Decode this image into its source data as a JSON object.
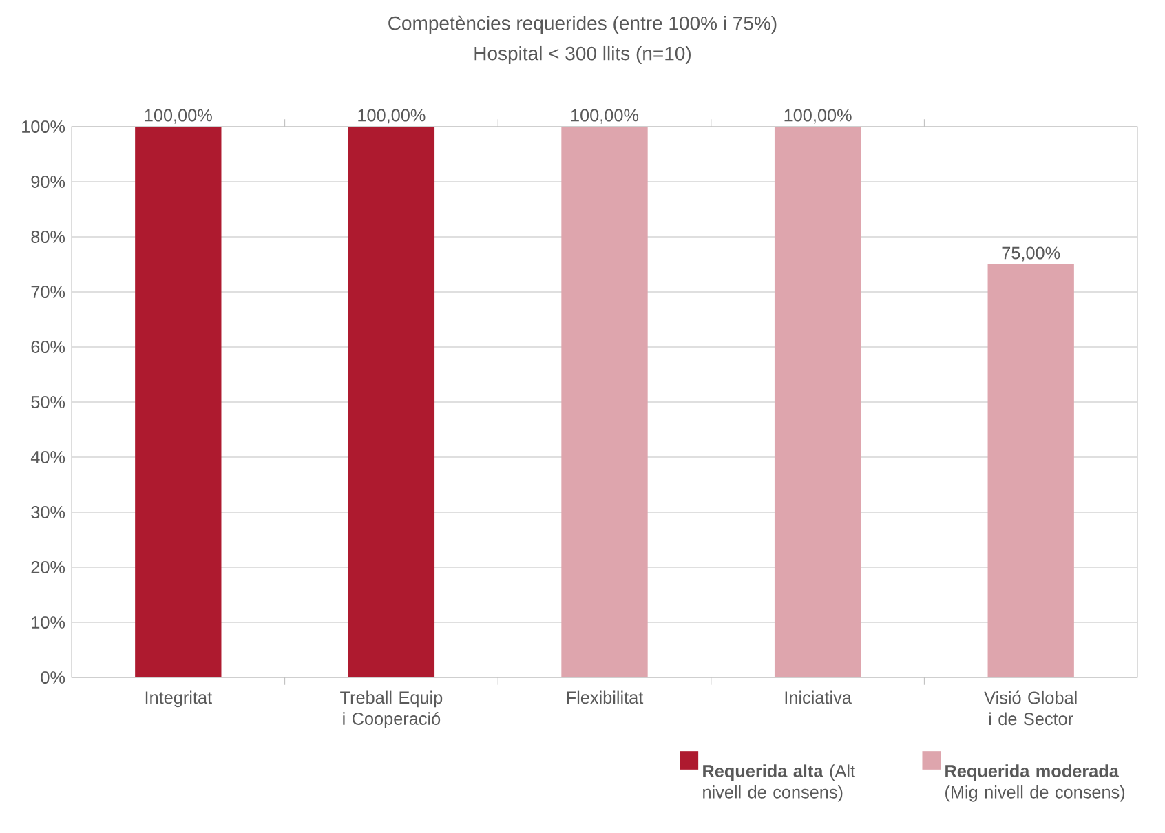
{
  "chart_data": {
    "type": "bar",
    "title": "Competències requerides (entre 100% i 75%)",
    "subtitle": "Hospital < 300 llits (n=10)",
    "categories": [
      "Integritat",
      "Treball Equip i Cooperació",
      "Flexibilitat",
      "Iniciativa",
      "Visió Global i de Sector"
    ],
    "series": [
      {
        "name": "**Requerida alta** (Alt nivell de consens)",
        "color": "#ae1a2f",
        "values": [
          100,
          100,
          null,
          null,
          null
        ],
        "value_labels": [
          "100,00%",
          "100,00%",
          null,
          null,
          null
        ]
      },
      {
        "name": "**Requerida moderada** (Mig nivell de consens)",
        "color": "#dea5ad",
        "values": [
          null,
          null,
          100,
          100,
          75
        ],
        "value_labels": [
          null,
          null,
          "100,00%",
          "100,00%",
          "75,00%"
        ]
      }
    ],
    "ylim": [
      0,
      100
    ],
    "yticks": [
      {
        "value": 0,
        "label": "0%"
      },
      {
        "value": 10,
        "label": "10%"
      },
      {
        "value": 20,
        "label": "20%"
      },
      {
        "value": 30,
        "label": "30%"
      },
      {
        "value": 40,
        "label": "40%"
      },
      {
        "value": 50,
        "label": "50%"
      },
      {
        "value": 60,
        "label": "60%"
      },
      {
        "value": 70,
        "label": "70%"
      },
      {
        "value": 80,
        "label": "80%"
      },
      {
        "value": 90,
        "label": "90%"
      },
      {
        "value": 100,
        "label": "100%"
      }
    ],
    "grid": "y",
    "legend": "bottom right"
  }
}
